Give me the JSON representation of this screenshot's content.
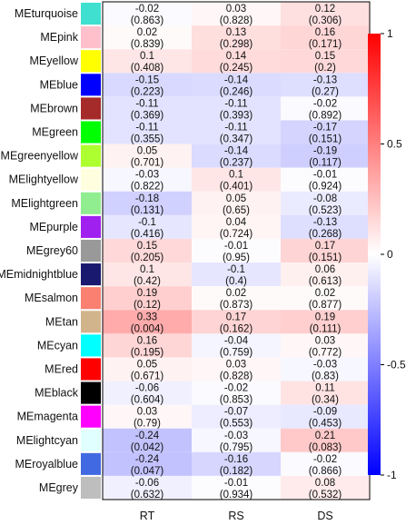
{
  "chart_data": {
    "type": "heatmap",
    "title": "",
    "xlabel": "",
    "ylabel": "",
    "columns": [
      "RT",
      "RS",
      "DS"
    ],
    "rows": [
      {
        "name": "MEturquoise",
        "color": "#40E0D0",
        "r": [
          "-0.02",
          "0.03",
          "0.12"
        ],
        "p": [
          "(0.863)",
          "(0.828)",
          "(0.306)"
        ]
      },
      {
        "name": "MEpink",
        "color": "#FFC0CB",
        "r": [
          "0.02",
          "0.13",
          "0.16"
        ],
        "p": [
          "(0.839)",
          "(0.298)",
          "(0.171)"
        ]
      },
      {
        "name": "MEyellow",
        "color": "#FFFF00",
        "r": [
          "0.1",
          "0.14",
          "0.15"
        ],
        "p": [
          "(0.408)",
          "(0.245)",
          "(0.2)"
        ]
      },
      {
        "name": "MEblue",
        "color": "#0000FF",
        "r": [
          "-0.15",
          "-0.14",
          "-0.13"
        ],
        "p": [
          "(0.223)",
          "(0.246)",
          "(0.27)"
        ]
      },
      {
        "name": "MEbrown",
        "color": "#A52A2A",
        "r": [
          "-0.11",
          "-0.11",
          "-0.02"
        ],
        "p": [
          "(0.369)",
          "(0.393)",
          "(0.892)"
        ]
      },
      {
        "name": "MEgreen",
        "color": "#00FF00",
        "r": [
          "-0.11",
          "-0.11",
          "-0.17"
        ],
        "p": [
          "(0.355)",
          "(0.347)",
          "(0.151)"
        ]
      },
      {
        "name": "MEgreenyellow",
        "color": "#ADFF2F",
        "r": [
          "0.05",
          "-0.14",
          "-0.19"
        ],
        "p": [
          "(0.701)",
          "(0.237)",
          "(0.117)"
        ]
      },
      {
        "name": "MElightyellow",
        "color": "#FFFFE0",
        "r": [
          "-0.03",
          "0.1",
          "-0.01"
        ],
        "p": [
          "(0.822)",
          "(0.401)",
          "(0.924)"
        ]
      },
      {
        "name": "MElightgreen",
        "color": "#90EE90",
        "r": [
          "-0.18",
          "0.05",
          "-0.08"
        ],
        "p": [
          "(0.131)",
          "(0.65)",
          "(0.523)"
        ]
      },
      {
        "name": "MEpurple",
        "color": "#A020F0",
        "r": [
          "-0.1",
          "0.04",
          "-0.13"
        ],
        "p": [
          "(0.416)",
          "(0.724)",
          "(0.268)"
        ]
      },
      {
        "name": "MEgrey60",
        "color": "#999999",
        "r": [
          "0.15",
          "-0.01",
          "0.17"
        ],
        "p": [
          "(0.205)",
          "(0.95)",
          "(0.151)"
        ]
      },
      {
        "name": "MEmidnightblue",
        "color": "#191970",
        "r": [
          "0.1",
          "-0.1",
          "0.06"
        ],
        "p": [
          "(0.42)",
          "(0.4)",
          "(0.613)"
        ]
      },
      {
        "name": "MEsalmon",
        "color": "#FA8072",
        "r": [
          "0.19",
          "0.02",
          "0.02"
        ],
        "p": [
          "(0.12)",
          "(0.873)",
          "(0.877)"
        ]
      },
      {
        "name": "MEtan",
        "color": "#D2B48C",
        "r": [
          "0.33",
          "0.17",
          "0.19"
        ],
        "p": [
          "(0.004)",
          "(0.162)",
          "(0.111)"
        ]
      },
      {
        "name": "MEcyan",
        "color": "#00FFFF",
        "r": [
          "0.16",
          "-0.04",
          "0.03"
        ],
        "p": [
          "(0.195)",
          "(0.759)",
          "(0.772)"
        ]
      },
      {
        "name": "MEred",
        "color": "#FF0000",
        "r": [
          "0.05",
          "0.03",
          "-0.03"
        ],
        "p": [
          "(0.671)",
          "(0.828)",
          "(0.83)"
        ]
      },
      {
        "name": "MEblack",
        "color": "#000000",
        "r": [
          "-0.06",
          "-0.02",
          "0.11"
        ],
        "p": [
          "(0.604)",
          "(0.853)",
          "(0.34)"
        ]
      },
      {
        "name": "MEmagenta",
        "color": "#FF00FF",
        "r": [
          "0.03",
          "-0.07",
          "-0.09"
        ],
        "p": [
          "(0.79)",
          "(0.553)",
          "(0.453)"
        ]
      },
      {
        "name": "MElightcyan",
        "color": "#E0FFFF",
        "r": [
          "-0.24",
          "-0.03",
          "0.21"
        ],
        "p": [
          "(0.042)",
          "(0.795)",
          "(0.083)"
        ]
      },
      {
        "name": "MEroyalblue",
        "color": "#4169E1",
        "r": [
          "-0.24",
          "-0.16",
          "-0.02"
        ],
        "p": [
          "(0.047)",
          "(0.182)",
          "(0.866)"
        ]
      },
      {
        "name": "MEgrey",
        "color": "#BEBEBE",
        "r": [
          "-0.06",
          "-0.01",
          "0.08"
        ],
        "p": [
          "(0.632)",
          "(0.934)",
          "(0.532)"
        ]
      }
    ],
    "colorbar": {
      "min": -1,
      "max": 1,
      "ticks": [
        "1",
        "0.5",
        "0",
        "-0.5",
        "-1"
      ],
      "tick_values": [
        1,
        0.5,
        0,
        -0.5,
        -1
      ],
      "low_color": "#0000FF",
      "mid_color": "#FFFFFF",
      "high_color": "#FF0000"
    }
  }
}
